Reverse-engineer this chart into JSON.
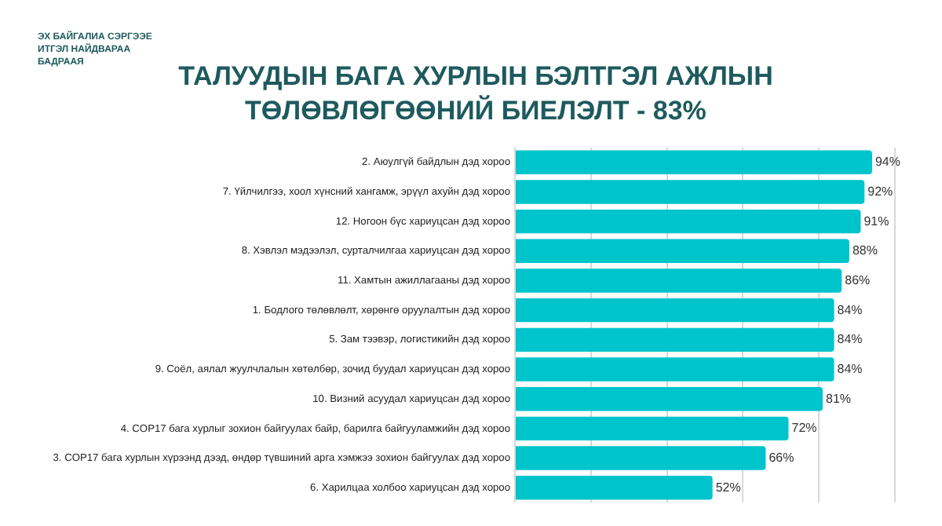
{
  "chart_data": {
    "type": "bar",
    "orientation": "horizontal",
    "title": "ТАЛУУДЫН БАГА ХУРЛЫН БЭЛТГЭЛ АЖЛЫН ТӨЛӨВЛӨГӨӨНИЙ БИЕЛЭЛТ - 83%",
    "annotations": [
      "ЭХ БАЙГАЛИА СЭРГЭЭЕ ИТГЭЛ НАЙДВАРАА БАДРААЯ"
    ],
    "categories": [
      "2. Аюулгүй байдлын дэд хороо",
      "7. Үйлчилгээ, хоол хүнсний хангамж, эрүүл ахуйн дэд хороо",
      "12. Ногоон бүс хариуцсан дэд хороо",
      "8. Хэвлэл мэдээлэл, сурталчилгаа хариуцсан дэд хороо",
      "11. Хамтын ажиллагааны дэд хороо",
      "1. Бодлого төлөвлөлт, хөрөнгө оруулалтын дэд хороо",
      "5. Зам тээвэр, логистикийн дэд хороо",
      "9. Соёл, аялал жуулчлалын хөтөлбөр, зочид буудал хариуцсан дэд хороо",
      "10. Визний асуудал хариуцсан дэд хороо",
      "4. COP17 бага хурлыг зохион байгуулах байр, барилга байгууламжийн дэд хороо",
      "3. COP17 бага хурлын хүрээнд дээд, өндөр түвшиний арга хэмжээ зохион байгуулах дэд хороо",
      "6. Харилцаа холбоо хариуцсан дэд хороо"
    ],
    "values": [
      94,
      92,
      91,
      88,
      86,
      84,
      84,
      84,
      81,
      72,
      66,
      52
    ],
    "value_labels": [
      "94%",
      "92%",
      "91%",
      "88%",
      "86%",
      "84%",
      "84%",
      "84%",
      "81%",
      "72%",
      "66%",
      "52%"
    ],
    "color": "#00c4cc",
    "xlim": [
      0,
      100
    ],
    "xticks": [
      {
        "value": 0,
        "label": null
      },
      {
        "value": 20,
        "label": null
      },
      {
        "value": 40,
        "label": null
      },
      {
        "value": 60,
        "label": null
      },
      {
        "value": 80,
        "label": null
      },
      {
        "value": 100,
        "label": null
      }
    ],
    "tick_labels": "y",
    "grid": "x",
    "legend": false
  }
}
